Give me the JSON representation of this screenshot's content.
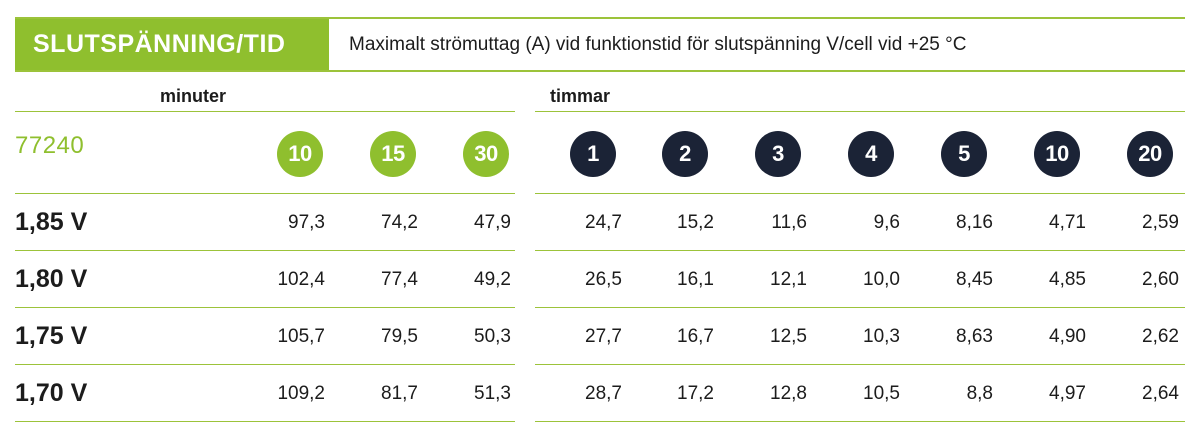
{
  "header": {
    "tag": "SLUTSPÄNNING/TID",
    "description": "Maximalt strömuttag (A) vid funktionstid för slutspänning V/cell vid +25 °C"
  },
  "groups": {
    "minutes_label": "minuter",
    "hours_label": "timmar"
  },
  "model": "77240",
  "minute_columns": [
    "10",
    "15",
    "30"
  ],
  "hour_columns": [
    "1",
    "2",
    "3",
    "4",
    "5",
    "10",
    "20"
  ],
  "rows": [
    {
      "label": "1,85 V",
      "values": [
        "97,3",
        "74,2",
        "47,9",
        "24,7",
        "15,2",
        "11,6",
        "9,6",
        "8,16",
        "4,71",
        "2,59"
      ]
    },
    {
      "label": "1,80 V",
      "values": [
        "102,4",
        "77,4",
        "49,2",
        "26,5",
        "16,1",
        "12,1",
        "10,0",
        "8,45",
        "4,85",
        "2,60"
      ]
    },
    {
      "label": "1,75 V",
      "values": [
        "105,7",
        "79,5",
        "50,3",
        "27,7",
        "16,7",
        "12,5",
        "10,3",
        "8,63",
        "4,90",
        "2,62"
      ]
    },
    {
      "label": "1,70 V",
      "values": [
        "109,2",
        "81,7",
        "51,3",
        "28,7",
        "17,2",
        "12,8",
        "10,5",
        "8,8",
        "4,97",
        "2,64"
      ]
    }
  ],
  "colors": {
    "accent_green": "#8fbf2e",
    "navy": "#1b2336"
  }
}
